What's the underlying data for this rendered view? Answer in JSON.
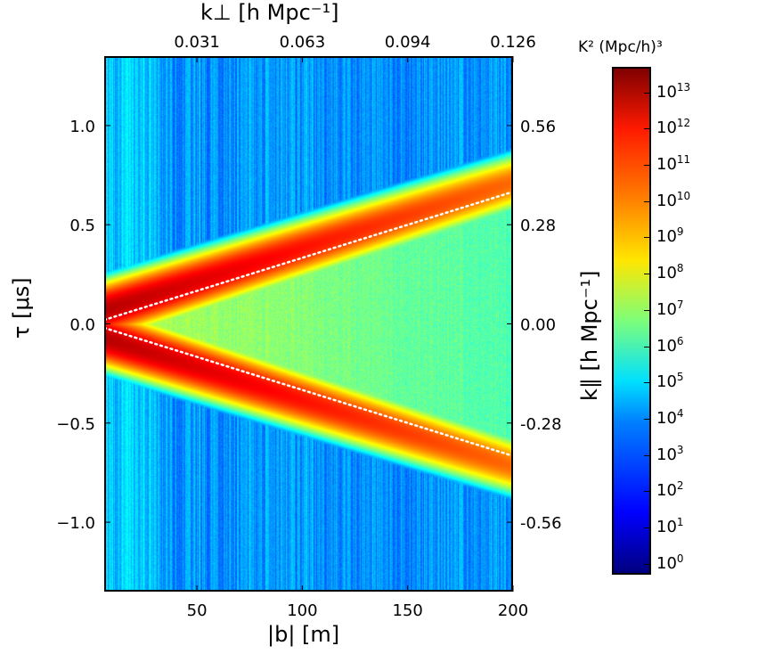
{
  "chart_data": {
    "type": "heatmap",
    "title": "",
    "xlabel": "|b| [m]",
    "ylabel": "τ [μs]",
    "top_xlabel": "k⊥ [h Mpc⁻¹]",
    "right_ylabel": "k∥ [h Mpc⁻¹]",
    "xlim": [
      6,
      200
    ],
    "ylim": [
      -1.35,
      1.35
    ],
    "xticks": [
      50,
      100,
      150,
      200
    ],
    "xtick_labels": [
      "50",
      "100",
      "150",
      "200"
    ],
    "yticks": [
      1.0,
      0.5,
      0.0,
      -0.5,
      -1.0
    ],
    "ytick_labels": [
      "1.0",
      "0.5",
      "0.0",
      "−0.5",
      "−1.0"
    ],
    "top_xticks": [
      50,
      100,
      150,
      200
    ],
    "top_xtick_labels": [
      "0.031",
      "0.063",
      "0.094",
      "0.126"
    ],
    "right_yticks": [
      1.0,
      0.5,
      0.0,
      -0.5,
      -1.0
    ],
    "right_ytick_labels": [
      "0.56",
      "0.28",
      "0.00",
      "-0.28",
      "-0.56"
    ],
    "colorbar": {
      "label": "K² (Mpc/h)³",
      "scale": "log",
      "range_log10": [
        -0.3,
        13.7
      ],
      "tick_exponents": [
        13,
        12,
        11,
        10,
        9,
        8,
        7,
        6,
        5,
        4,
        3,
        2,
        1,
        0
      ],
      "colormap": "jet"
    },
    "features": {
      "horizon_line_slope_us_per_m": 0.00333,
      "horizon_line_style": "white dotted",
      "wedge_peak_log10": 13,
      "background_log10": 3.5,
      "wedge_interior_log10": 7.5
    }
  }
}
